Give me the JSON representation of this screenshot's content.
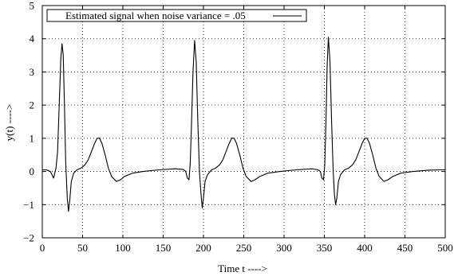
{
  "chart_data": {
    "type": "line",
    "title": "",
    "xlabel": "Time t ---->",
    "ylabel": "y(t) ---->",
    "xlim": [
      0,
      500
    ],
    "ylim": [
      -2,
      5
    ],
    "xticks": [
      "0",
      "50",
      "100",
      "150",
      "200",
      "250",
      "300",
      "350",
      "400",
      "450",
      "500"
    ],
    "yticks": [
      "5",
      "4",
      "3",
      "2",
      "1",
      "0",
      "−1",
      "−2"
    ],
    "grid": true,
    "legend": {
      "label": "Estimated signal when noise variance = .05",
      "placement": "top-left"
    },
    "series": [
      {
        "name": "Estimated signal when noise variance = .05",
        "color": "#000000",
        "points": [
          [
            0,
            0.05
          ],
          [
            5,
            0.05
          ],
          [
            10,
            0.0
          ],
          [
            14,
            -0.2
          ],
          [
            17,
            0.1
          ],
          [
            19,
            0.6
          ],
          [
            21,
            2.0
          ],
          [
            23,
            3.4
          ],
          [
            24.5,
            3.85
          ],
          [
            26,
            3.5
          ],
          [
            27.5,
            2.0
          ],
          [
            29,
            0.3
          ],
          [
            31,
            -0.8
          ],
          [
            32.5,
            -1.2
          ],
          [
            34,
            -0.9
          ],
          [
            36,
            -0.3
          ],
          [
            39,
            -0.05
          ],
          [
            43,
            0.05
          ],
          [
            48,
            0.1
          ],
          [
            53,
            0.2
          ],
          [
            57,
            0.35
          ],
          [
            61,
            0.6
          ],
          [
            65,
            0.85
          ],
          [
            68,
            1.0
          ],
          [
            71,
            1.0
          ],
          [
            74,
            0.85
          ],
          [
            78,
            0.5
          ],
          [
            82,
            0.1
          ],
          [
            86,
            -0.15
          ],
          [
            92,
            -0.3
          ],
          [
            97,
            -0.25
          ],
          [
            102,
            -0.15
          ],
          [
            112,
            -0.05
          ],
          [
            125,
            0.0
          ],
          [
            145,
            0.05
          ],
          [
            165,
            0.08
          ],
          [
            175,
            0.06
          ],
          [
            178,
            0.0
          ],
          [
            180,
            -0.2
          ],
          [
            182,
            -0.25
          ],
          [
            183.5,
            0.2
          ],
          [
            185,
            1.3
          ],
          [
            187,
            3.0
          ],
          [
            189,
            3.95
          ],
          [
            191,
            3.3
          ],
          [
            193,
            1.5
          ],
          [
            195,
            0.0
          ],
          [
            197,
            -0.7
          ],
          [
            198.5,
            -1.1
          ],
          [
            200,
            -0.8
          ],
          [
            202,
            -0.3
          ],
          [
            205,
            -0.1
          ],
          [
            210,
            0.05
          ],
          [
            215,
            0.1
          ],
          [
            220,
            0.2
          ],
          [
            224,
            0.35
          ],
          [
            228,
            0.6
          ],
          [
            232,
            0.85
          ],
          [
            235,
            1.0
          ],
          [
            238,
            1.0
          ],
          [
            241,
            0.85
          ],
          [
            245,
            0.5
          ],
          [
            249,
            0.1
          ],
          [
            253,
            -0.15
          ],
          [
            259,
            -0.3
          ],
          [
            264,
            -0.25
          ],
          [
            270,
            -0.15
          ],
          [
            280,
            -0.05
          ],
          [
            295,
            0.0
          ],
          [
            315,
            0.05
          ],
          [
            335,
            0.08
          ],
          [
            342,
            0.05
          ],
          [
            345,
            0.0
          ],
          [
            347,
            -0.2
          ],
          [
            349,
            -0.25
          ],
          [
            350.5,
            0.2
          ],
          [
            352,
            1.5
          ],
          [
            353.5,
            3.2
          ],
          [
            355,
            4.05
          ],
          [
            357,
            3.3
          ],
          [
            359,
            1.5
          ],
          [
            361,
            0.0
          ],
          [
            362.5,
            -0.7
          ],
          [
            364,
            -1.0
          ],
          [
            365.5,
            -0.8
          ],
          [
            367.5,
            -0.3
          ],
          [
            370,
            -0.1
          ],
          [
            375,
            0.05
          ],
          [
            380,
            0.1
          ],
          [
            385,
            0.2
          ],
          [
            389,
            0.35
          ],
          [
            393,
            0.6
          ],
          [
            397,
            0.85
          ],
          [
            400,
            1.0
          ],
          [
            403,
            1.0
          ],
          [
            406,
            0.85
          ],
          [
            410,
            0.5
          ],
          [
            414,
            0.1
          ],
          [
            418,
            -0.15
          ],
          [
            424,
            -0.3
          ],
          [
            429,
            -0.25
          ],
          [
            435,
            -0.15
          ],
          [
            445,
            -0.05
          ],
          [
            460,
            0.0
          ],
          [
            480,
            0.04
          ],
          [
            495,
            0.05
          ],
          [
            500,
            0.05
          ]
        ]
      }
    ]
  }
}
